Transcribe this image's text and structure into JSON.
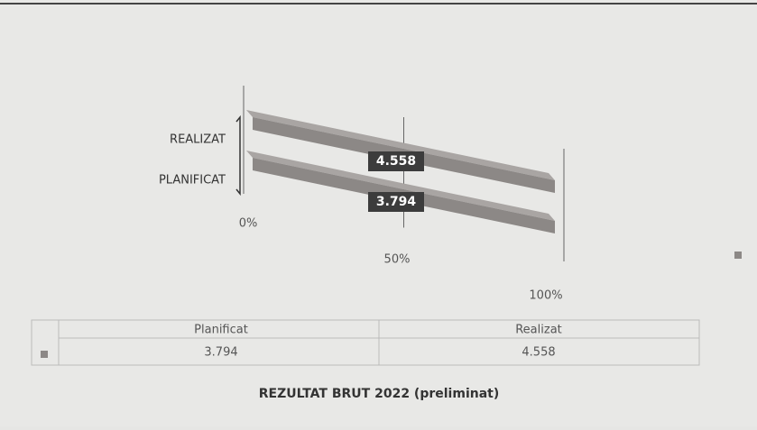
{
  "chart_data": {
    "type": "bar3d",
    "orientation": "horizontal",
    "percent_stacked": true,
    "title": "REZULTAT BRUT 2022 (preliminat)",
    "categories": [
      "REALIZAT",
      "PLANIFICAT"
    ],
    "series": [
      {
        "color": "#8c8886",
        "values": [
          4.558,
          3.794
        ]
      }
    ],
    "xlim": [
      0,
      100
    ],
    "xticks": [
      {
        "value": 0,
        "label": "0%"
      },
      {
        "value": 50,
        "label": "50%"
      },
      {
        "value": 100,
        "label": "100%"
      }
    ],
    "grid": true,
    "table_columns": [
      "Planificat",
      "Realizat"
    ]
  }
}
